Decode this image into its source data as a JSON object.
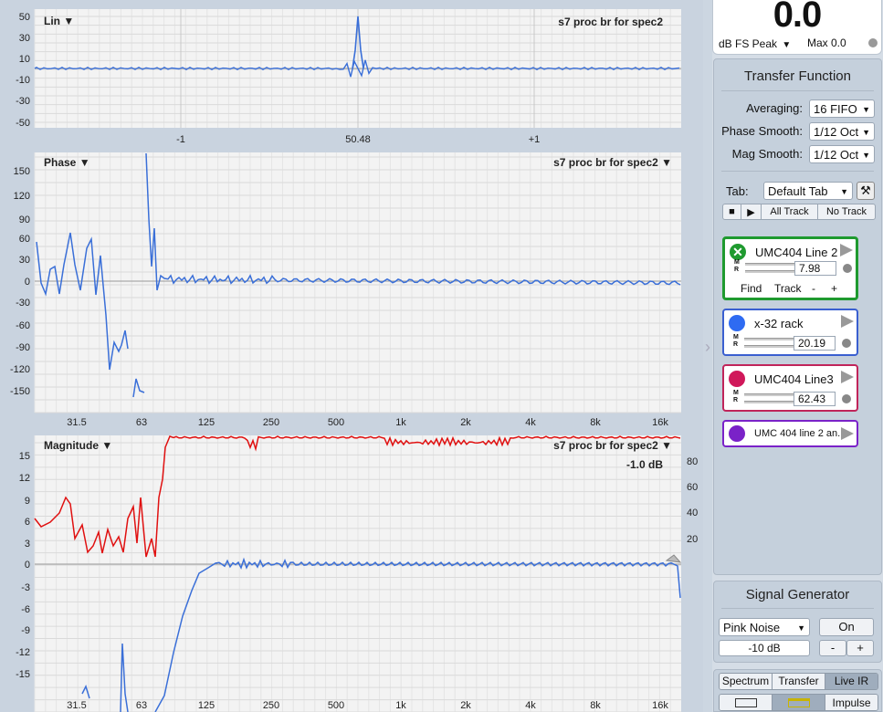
{
  "plots": {
    "ir": {
      "label": "Lin",
      "arrow": "▼",
      "trace": "s7 proc br for spec2",
      "y_ticks": [
        "50",
        "30",
        "10",
        "-10",
        "-30",
        "-50"
      ],
      "x_ticks": [
        "-1",
        "50.48",
        "+1"
      ]
    },
    "phase": {
      "label": "Phase",
      "arrow": "▼",
      "trace": "s7 proc br for spec2",
      "trace_arrow": "▼",
      "y_ticks": [
        "150",
        "120",
        "90",
        "60",
        "30",
        "0",
        "-30",
        "-60",
        "-90",
        "-120",
        "-150"
      ],
      "x_ticks": [
        "31.5",
        "63",
        "125",
        "250",
        "500",
        "1k",
        "2k",
        "4k",
        "8k",
        "16k"
      ]
    },
    "magnitude": {
      "label": "Magnitude",
      "arrow": "▼",
      "trace": "s7 proc br for spec2",
      "trace_arrow": "▼",
      "offset": "-1.0 dB",
      "y_ticks": [
        "15",
        "12",
        "9",
        "6",
        "3",
        "0",
        "-3",
        "-6",
        "-9",
        "-12",
        "-15"
      ],
      "y2_ticks": [
        "80",
        "60",
        "40",
        "20"
      ],
      "x_ticks": [
        "31.5",
        "63",
        "125",
        "250",
        "500",
        "1k",
        "2k",
        "4k",
        "8k",
        "16k"
      ]
    }
  },
  "colors": {
    "trace_blue": "#3a6fd8",
    "coherence_red": "#e01010",
    "green_border": "#1f9a2f",
    "blue_border": "#3a5fd0",
    "pink_border": "#c0245a",
    "purple_border": "#7a22c8"
  },
  "meter": {
    "value": "0.0",
    "unit": "dB FS Peak",
    "caret": "▼",
    "max": "Max 0.0"
  },
  "transfer": {
    "title": "Transfer Function",
    "averaging_label": "Averaging:",
    "averaging_value": "16 FIFO",
    "phase_smooth_label": "Phase Smooth:",
    "phase_smooth_value": "1/12 Oct",
    "mag_smooth_label": "Mag Smooth:",
    "mag_smooth_value": "1/12 Oct",
    "tab_label": "Tab:",
    "tab_value": "Default Tab",
    "stop_icon": "■",
    "play_icon": "▶",
    "all_track": "All Track",
    "no_track": "No Track"
  },
  "tracks": [
    {
      "name": "UMC404 Line 2",
      "value": "7.98",
      "find": "Find",
      "track": "Track",
      "minus": "-",
      "plus": "+",
      "icon": "close-circle-icon"
    },
    {
      "name": "x-32 rack",
      "value": "20.19"
    },
    {
      "name": "UMC404 Line3",
      "value": "62.43"
    },
    {
      "name": "UMC 404 line 2 an..."
    }
  ],
  "generator": {
    "title": "Signal Generator",
    "type": "Pink Noise",
    "on": "On",
    "level": "-10 dB",
    "minus": "-",
    "plus": "+"
  },
  "modes": {
    "spectrum": "Spectrum",
    "transfer": "Transfer",
    "liveir": "Live IR",
    "impulse": "Impulse"
  }
}
